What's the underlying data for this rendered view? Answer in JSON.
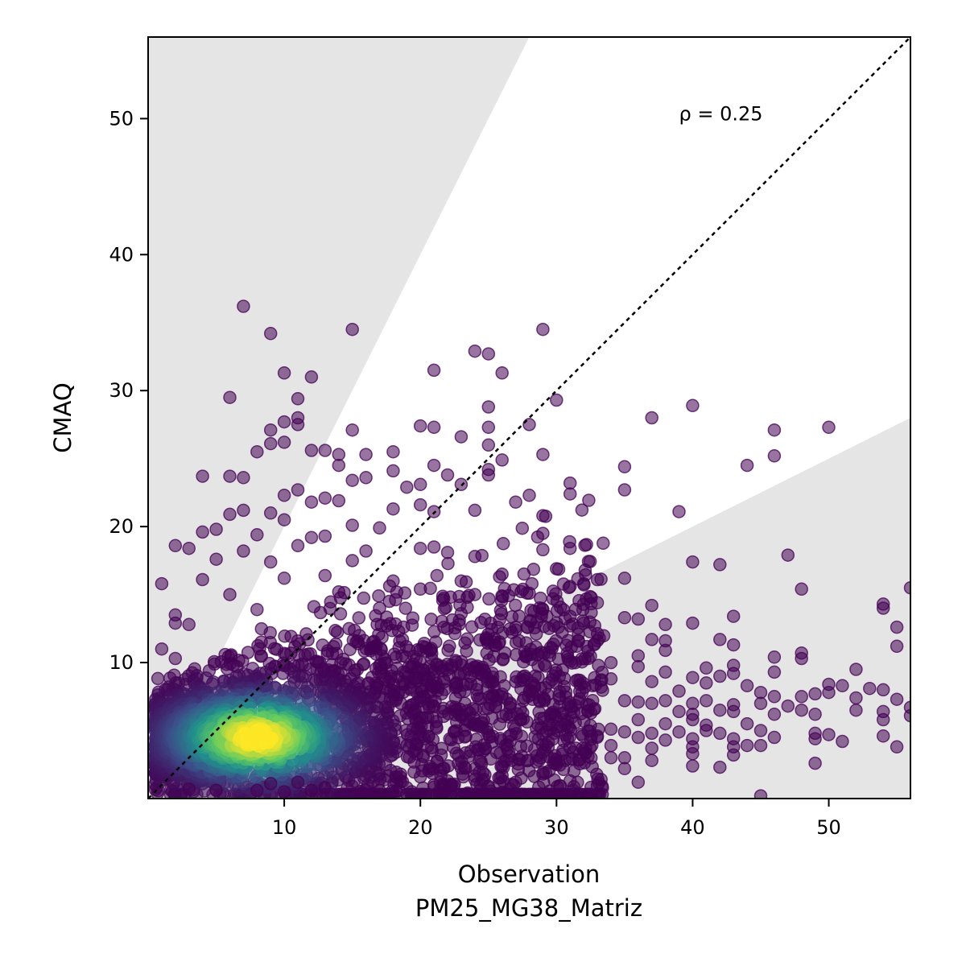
{
  "chart_data": {
    "type": "scatter",
    "title": "",
    "xlabel": "Observation",
    "xlabel_sub": "PM25_MG38_Matriz",
    "ylabel": "CMAQ",
    "xlim": [
      0,
      56
    ],
    "ylim": [
      0,
      56
    ],
    "x_ticks": [
      10,
      20,
      30,
      40,
      50
    ],
    "y_ticks": [
      10,
      20,
      30,
      40,
      50
    ],
    "grid": false,
    "annotation": {
      "text": "ρ = 0.25",
      "x": 39,
      "y": 50
    },
    "reference_line": {
      "style": "dotted",
      "from": [
        0,
        0
      ],
      "to": [
        56,
        56
      ]
    },
    "factor_of_two_band": {
      "upper_slope": 2,
      "lower_slope": 0.5,
      "outside_color": "#e5e5e5"
    },
    "colormap": "viridis",
    "point_color_low": "#440154",
    "point_color_high": "#fde725",
    "density_core": {
      "center": [
        8,
        4.5
      ],
      "spread": [
        5,
        2.4
      ]
    },
    "points": [
      [
        7,
        36.2
      ],
      [
        9,
        34.2
      ],
      [
        15,
        34.5
      ],
      [
        29,
        34.5
      ],
      [
        24,
        32.9
      ],
      [
        25,
        32.7
      ],
      [
        26,
        31.3
      ],
      [
        21,
        31.5
      ],
      [
        10,
        31.3
      ],
      [
        12,
        31
      ],
      [
        6,
        29.5
      ],
      [
        11,
        29.4
      ],
      [
        25,
        28.8
      ],
      [
        30,
        29.3
      ],
      [
        40,
        28.9
      ],
      [
        37,
        28
      ],
      [
        46,
        27.1
      ],
      [
        50,
        27.3
      ],
      [
        10,
        27.7
      ],
      [
        11,
        28
      ],
      [
        9,
        27.1
      ],
      [
        15,
        27.1
      ],
      [
        20,
        27.4
      ],
      [
        21,
        27.3
      ],
      [
        25,
        27.3
      ],
      [
        28,
        27.5
      ],
      [
        23,
        26.6
      ],
      [
        25,
        26
      ],
      [
        9,
        26.1
      ],
      [
        10,
        26.2
      ],
      [
        11,
        27.5
      ],
      [
        8,
        25.5
      ],
      [
        12,
        25.6
      ],
      [
        13,
        25.6
      ],
      [
        14,
        25.3
      ],
      [
        16,
        25.3
      ],
      [
        18,
        25.5
      ],
      [
        29,
        25.3
      ],
      [
        26,
        24.9
      ],
      [
        46,
        25.2
      ],
      [
        14,
        24.5
      ],
      [
        21,
        24.5
      ],
      [
        25,
        24.2
      ],
      [
        25,
        23.8
      ],
      [
        35,
        24.4
      ],
      [
        44,
        24.5
      ],
      [
        4,
        23.7
      ],
      [
        6,
        23.7
      ],
      [
        7,
        23.6
      ],
      [
        15,
        23.4
      ],
      [
        16,
        23.6
      ],
      [
        18,
        24.1
      ],
      [
        20,
        23.1
      ],
      [
        22,
        23.8
      ],
      [
        23,
        23.1
      ],
      [
        31,
        23.2
      ],
      [
        19,
        22.9
      ],
      [
        10,
        22.3
      ],
      [
        11,
        22.7
      ],
      [
        13,
        22.1
      ],
      [
        28,
        22.3
      ],
      [
        31,
        22.4
      ],
      [
        35,
        22.7
      ],
      [
        12,
        21.8
      ],
      [
        14,
        21.9
      ],
      [
        18,
        21.3
      ],
      [
        20,
        21.6
      ],
      [
        21,
        21.1
      ],
      [
        24,
        21.2
      ],
      [
        27,
        21.8
      ],
      [
        29,
        20.8
      ],
      [
        39,
        21.1
      ],
      [
        6,
        20.9
      ],
      [
        7,
        21.2
      ],
      [
        9,
        21
      ],
      [
        10,
        20.5
      ],
      [
        15,
        20.1
      ],
      [
        17,
        19.9
      ],
      [
        29,
        19.5
      ],
      [
        4,
        19.6
      ],
      [
        5,
        19.8
      ],
      [
        8,
        19.4
      ],
      [
        12,
        19.2
      ],
      [
        13,
        19.3
      ],
      [
        2,
        18.6
      ],
      [
        3,
        18.4
      ],
      [
        7,
        18.2
      ],
      [
        11,
        18.6
      ],
      [
        16,
        18.2
      ],
      [
        20,
        18.4
      ],
      [
        21,
        18.5
      ],
      [
        22,
        18.1
      ],
      [
        24,
        17.8
      ],
      [
        29,
        18.3
      ],
      [
        31,
        18.4
      ],
      [
        40,
        17.4
      ],
      [
        42,
        17.2
      ],
      [
        47,
        17.9
      ],
      [
        5,
        17.6
      ],
      [
        9,
        17.4
      ],
      [
        15,
        17.5
      ],
      [
        30,
        16.9
      ],
      [
        4,
        16.1
      ],
      [
        10,
        16.2
      ],
      [
        13,
        16.4
      ],
      [
        18,
        16
      ],
      [
        23,
        16
      ],
      [
        26,
        16.5
      ],
      [
        32,
        15.8
      ],
      [
        33,
        16.1
      ],
      [
        35,
        16.2
      ],
      [
        48,
        15.4
      ],
      [
        56,
        15.5
      ],
      [
        1,
        15.8
      ],
      [
        6,
        15
      ],
      [
        14,
        15.2
      ],
      [
        20,
        15.4
      ],
      [
        24,
        15
      ],
      [
        28,
        15.1
      ],
      [
        31,
        15.6
      ],
      [
        33,
        14.4
      ],
      [
        37,
        14.2
      ],
      [
        54,
        14.3
      ],
      [
        2,
        13.5
      ],
      [
        8,
        13.9
      ],
      [
        17,
        14
      ],
      [
        23,
        13.6
      ],
      [
        29,
        13.9
      ],
      [
        31,
        13.4
      ],
      [
        35,
        13.3
      ],
      [
        36,
        13.2
      ],
      [
        43,
        13.4
      ],
      [
        54,
        14
      ],
      [
        2,
        12.9
      ],
      [
        3,
        12.8
      ],
      [
        30,
        12.9
      ],
      [
        31,
        12.7
      ],
      [
        32,
        12.9
      ],
      [
        38,
        12.8
      ],
      [
        40,
        12.9
      ],
      [
        55,
        12.6
      ],
      [
        27,
        12.6
      ],
      [
        37,
        11.7
      ],
      [
        38,
        11.6
      ],
      [
        42,
        11.7
      ],
      [
        43,
        11.3
      ],
      [
        55,
        11.2
      ],
      [
        1,
        11
      ],
      [
        36,
        10.5
      ],
      [
        38,
        10.9
      ],
      [
        46,
        10.4
      ],
      [
        48,
        10.7
      ],
      [
        48,
        10.3
      ],
      [
        2,
        10.3
      ],
      [
        31,
        10.1
      ],
      [
        34,
        10
      ],
      [
        36,
        9.7
      ],
      [
        41,
        9.6
      ],
      [
        43,
        9.8
      ],
      [
        52,
        9.5
      ],
      [
        38,
        9.3
      ],
      [
        40,
        8.9
      ],
      [
        42,
        9
      ],
      [
        43,
        9.2
      ],
      [
        46,
        9.3
      ],
      [
        34,
        8.8
      ],
      [
        37,
        8.6
      ],
      [
        41,
        8.5
      ],
      [
        44,
        8.3
      ],
      [
        50,
        8.4
      ],
      [
        51,
        8.3
      ],
      [
        53,
        8.1
      ],
      [
        54,
        8
      ],
      [
        39,
        7.9
      ],
      [
        45,
        7.8
      ],
      [
        46,
        7.5
      ],
      [
        48,
        7.5
      ],
      [
        49,
        7.7
      ],
      [
        50,
        7.8
      ],
      [
        52,
        7.4
      ],
      [
        55,
        7.3
      ],
      [
        35,
        7.2
      ],
      [
        36,
        7.1
      ],
      [
        37,
        7
      ],
      [
        38,
        7.2
      ],
      [
        40,
        7
      ],
      [
        41,
        7.2
      ],
      [
        43,
        6.9
      ],
      [
        45,
        7
      ],
      [
        47,
        6.8
      ],
      [
        48,
        6.5
      ],
      [
        52,
        6.5
      ],
      [
        56,
        6.7
      ],
      [
        39,
        6.4
      ],
      [
        40,
        6.2
      ],
      [
        42,
        6.5
      ],
      [
        43,
        6.4
      ],
      [
        46,
        6.2
      ],
      [
        49,
        6.2
      ],
      [
        54,
        6.4
      ],
      [
        56,
        6.1
      ],
      [
        36,
        5.8
      ],
      [
        38,
        5.5
      ],
      [
        40,
        5.8
      ],
      [
        41,
        5.4
      ],
      [
        44,
        5.5
      ],
      [
        54,
        5.8
      ],
      [
        34,
        5.1
      ],
      [
        35,
        4.9
      ],
      [
        37,
        4.8
      ],
      [
        39,
        4.9
      ],
      [
        41,
        5
      ],
      [
        42,
        4.8
      ],
      [
        45,
        5
      ],
      [
        49,
        4.8
      ],
      [
        50,
        4.7
      ],
      [
        33,
        4.6
      ],
      [
        36,
        4.5
      ],
      [
        38,
        4.3
      ],
      [
        40,
        4.4
      ],
      [
        43,
        4.4
      ],
      [
        46,
        4.5
      ],
      [
        49,
        4.4
      ],
      [
        51,
        4.2
      ],
      [
        54,
        4.6
      ],
      [
        34,
        3.9
      ],
      [
        37,
        3.7
      ],
      [
        40,
        3.8
      ],
      [
        43,
        3.8
      ],
      [
        44,
        3.9
      ],
      [
        45,
        3.9
      ],
      [
        55,
        3.8
      ],
      [
        29,
        3.4
      ],
      [
        32,
        3.5
      ],
      [
        34,
        3
      ],
      [
        35,
        3
      ],
      [
        37,
        2.8
      ],
      [
        40,
        3.3
      ],
      [
        43,
        3.2
      ],
      [
        49,
        2.6
      ],
      [
        42,
        2.3
      ],
      [
        40,
        2.4
      ],
      [
        35,
        2.2
      ],
      [
        31,
        2.9
      ],
      [
        30,
        2.5
      ],
      [
        26,
        2.4
      ],
      [
        24,
        2.2
      ],
      [
        29,
        1.8
      ],
      [
        26,
        1.7
      ],
      [
        24,
        1.4
      ],
      [
        20,
        1.6
      ],
      [
        22,
        1.3
      ],
      [
        27,
        1.2
      ],
      [
        31,
        1.3
      ],
      [
        36,
        1.2
      ],
      [
        21,
        1
      ],
      [
        25,
        0.9
      ],
      [
        19,
        0.8
      ],
      [
        31,
        0.2
      ],
      [
        45,
        0.2
      ],
      [
        17,
        0.6
      ],
      [
        15,
        0.9
      ],
      [
        13,
        0.8
      ],
      [
        12,
        0.6
      ],
      [
        10,
        0.5
      ],
      [
        8,
        0.6
      ],
      [
        5,
        0.6
      ],
      [
        3,
        0.7
      ],
      [
        9,
        1.1
      ],
      [
        11,
        1.2
      ]
    ]
  }
}
